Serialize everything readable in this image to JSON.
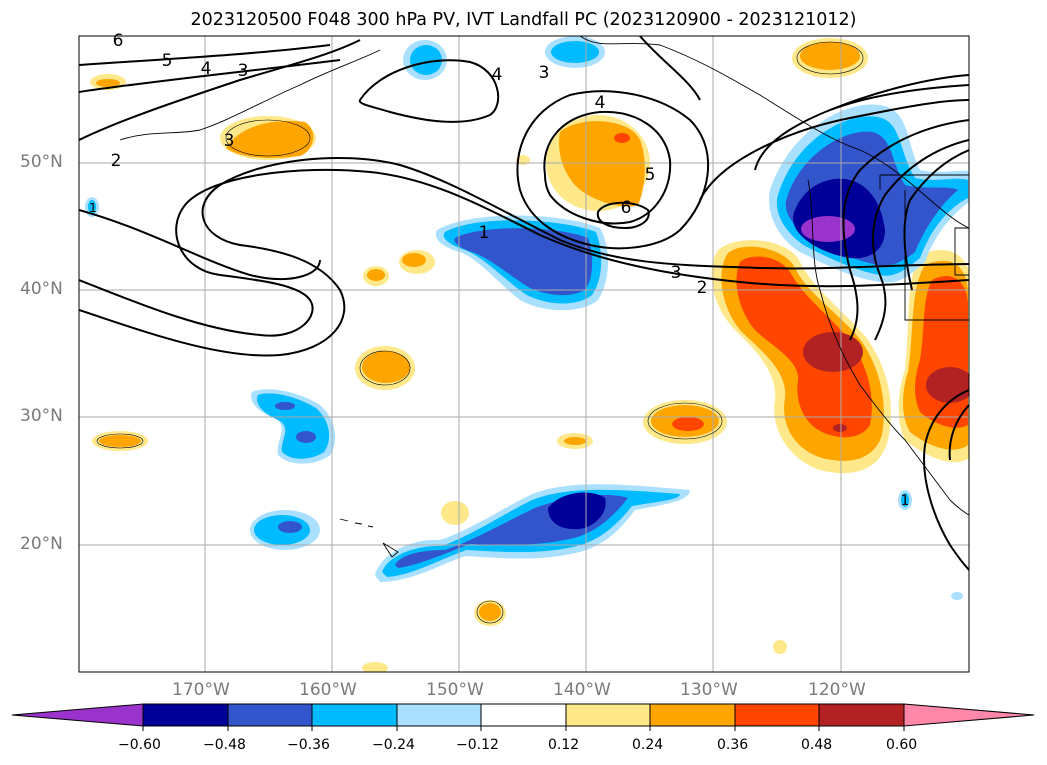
{
  "title": "2023120500 F048 300 hPa PV, IVT Landfall PC (2023120900 - 2023121012)",
  "latitude_labels": [
    "50°N",
    "40°N",
    "30°N",
    "20°N"
  ],
  "longitude_labels": [
    "170°W",
    "160°W",
    "150°W",
    "140°W",
    "130°W",
    "120°W"
  ],
  "contour_labels": [
    "6",
    "5",
    "4",
    "3",
    "2",
    "3",
    "4",
    "3",
    "4",
    "5",
    "6",
    "1",
    "3",
    "2",
    "1",
    "1"
  ],
  "colorbar": {
    "tick_labels": [
      "−0.60",
      "−0.48",
      "−0.36",
      "−0.24",
      "−0.12",
      "0.12",
      "0.24",
      "0.36",
      "0.48",
      "0.60"
    ],
    "colors": [
      "#9933cc",
      "#000099",
      "#3355cc",
      "#00bbff",
      "#aae0ff",
      "#ffffff",
      "#ffe88a",
      "#ffa500",
      "#ff4500",
      "#b22222",
      "#ff88aa"
    ]
  },
  "colors": {
    "positive_strong": "#b22222",
    "positive_mid": "#ff4500",
    "positive_low": "#ffa500",
    "positive_faint": "#ffe88a",
    "negative_strong": "#000099",
    "negative_mid": "#3355cc",
    "negative_low": "#00bbff",
    "negative_faint": "#aae0ff",
    "extreme_negative": "#9933cc",
    "contour": "#000000",
    "gridline": "#aaaaaa"
  }
}
